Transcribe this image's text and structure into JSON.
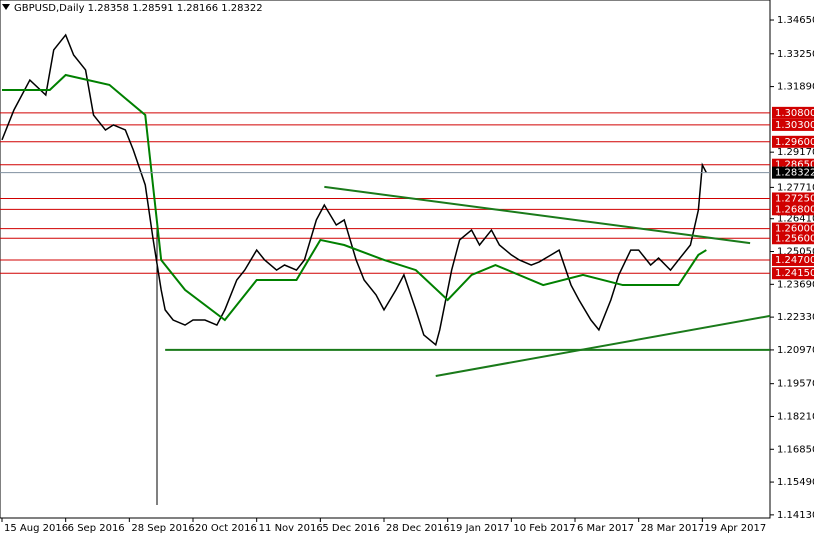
{
  "chart_data": {
    "type": "line",
    "title": "GBPUSD,Daily  1.28358 1.28591 1.28166 1.28322",
    "ylim": [
      1.14,
      1.3548
    ],
    "xlim": [
      0,
      193
    ],
    "yticks": [
      {
        "value": 1.3465,
        "label": "1.34650"
      },
      {
        "value": 1.3325,
        "label": "1.33250"
      },
      {
        "value": 1.3189,
        "label": "1.31890"
      },
      {
        "value": 1.2917,
        "label": "1.29170"
      },
      {
        "value": 1.2771,
        "label": "1.27710"
      },
      {
        "value": 1.2641,
        "label": "1.26410"
      },
      {
        "value": 1.2505,
        "label": "1.25050"
      },
      {
        "value": 1.2369,
        "label": "1.23690"
      },
      {
        "value": 1.2233,
        "label": "1.22330"
      },
      {
        "value": 1.2097,
        "label": "1.20970"
      },
      {
        "value": 1.1957,
        "label": "1.19570"
      },
      {
        "value": 1.1821,
        "label": "1.18210"
      },
      {
        "value": 1.1685,
        "label": "1.16850"
      },
      {
        "value": 1.1549,
        "label": "1.15490"
      },
      {
        "value": 1.1413,
        "label": "1.14130"
      }
    ],
    "xticks": [
      {
        "value": 0,
        "label": "15 Aug 2016"
      },
      {
        "value": 16,
        "label": "6 Sep 2016"
      },
      {
        "value": 32,
        "label": "28 Sep 2016"
      },
      {
        "value": 48,
        "label": "20 Oct 2016"
      },
      {
        "value": 64,
        "label": "11 Nov 2016"
      },
      {
        "value": 80,
        "label": "5 Dec 2016"
      },
      {
        "value": 96,
        "label": "28 Dec 2016"
      },
      {
        "value": 112,
        "label": "19 Jan 2017"
      },
      {
        "value": 128,
        "label": "10 Feb 2017"
      },
      {
        "value": 144,
        "label": "6 Mar 2017"
      },
      {
        "value": 160,
        "label": "28 Mar 2017"
      },
      {
        "value": 176,
        "label": "19 Apr 2017"
      }
    ],
    "levels": [
      {
        "value": 1.308,
        "label": "1.30800"
      },
      {
        "value": 1.303,
        "label": "1.30300"
      },
      {
        "value": 1.296,
        "label": "1.29600"
      },
      {
        "value": 1.2865,
        "label": "1.28650"
      },
      {
        "value": 1.2725,
        "label": "1.27250"
      },
      {
        "value": 1.268,
        "label": "1.26800"
      },
      {
        "value": 1.26,
        "label": "1.26000"
      },
      {
        "value": 1.256,
        "label": "1.25600"
      },
      {
        "value": 1.247,
        "label": "1.24700"
      },
      {
        "value": 1.2415,
        "label": "1.24150"
      }
    ],
    "level_color": "#d00000",
    "last": {
      "value": 1.28322,
      "label": "1.28322"
    },
    "series": [
      {
        "color": "#000000",
        "width": 1.5,
        "x": [
          0,
          3,
          7,
          11,
          13,
          16,
          18,
          21,
          23,
          26,
          28,
          31,
          33,
          36,
          38,
          40,
          41,
          43,
          46,
          48,
          51,
          54,
          56,
          59,
          61,
          64,
          66,
          69,
          71,
          74,
          76,
          79,
          81,
          84,
          86,
          89,
          91,
          94,
          96,
          99,
          101,
          104,
          106,
          109,
          110,
          113,
          115,
          118,
          120,
          123,
          125,
          128,
          130,
          133,
          135,
          138,
          140,
          143,
          145,
          148,
          150,
          153,
          155,
          158,
          160,
          163,
          165,
          168,
          170,
          173,
          175,
          176,
          177
        ],
        "values": [
          1.2968,
          1.3092,
          1.3216,
          1.3154,
          1.3341,
          1.3403,
          1.332,
          1.3258,
          1.3071,
          1.3009,
          1.303,
          1.3009,
          1.2926,
          1.2781,
          1.2553,
          1.2346,
          1.2263,
          1.2221,
          1.22,
          1.2221,
          1.2221,
          1.22,
          1.2263,
          1.2387,
          1.2428,
          1.2511,
          1.247,
          1.2428,
          1.2449,
          1.2428,
          1.247,
          1.2636,
          1.2698,
          1.2615,
          1.2636,
          1.247,
          1.2387,
          1.2325,
          1.2263,
          1.2346,
          1.2408,
          1.2263,
          1.2159,
          1.2118,
          1.218,
          1.2428,
          1.2553,
          1.2594,
          1.2532,
          1.2594,
          1.2532,
          1.2491,
          1.247,
          1.2449,
          1.2462,
          1.2491,
          1.2511,
          1.2366,
          1.2304,
          1.2221,
          1.218,
          1.2304,
          1.2408,
          1.2511,
          1.2511,
          1.2449,
          1.2478,
          1.2428,
          1.247,
          1.2532,
          1.2677,
          1.2864,
          1.28322
        ]
      },
      {
        "color": "#008000",
        "width": 2,
        "x": [
          0,
          12,
          16,
          27,
          36,
          40,
          46,
          56,
          64,
          74,
          80,
          86,
          96,
          104,
          112,
          118,
          124,
          136,
          146,
          156,
          170,
          175,
          177
        ],
        "values": [
          1.3175,
          1.3175,
          1.3237,
          1.3196,
          1.3071,
          1.247,
          1.2346,
          1.2221,
          1.2387,
          1.2387,
          1.2553,
          1.2532,
          1.247,
          1.2428,
          1.2304,
          1.2408,
          1.2449,
          1.2366,
          1.2408,
          1.2366,
          1.2366,
          1.2491,
          1.2511
        ]
      },
      {
        "color": "#1a7a1a",
        "width": 2,
        "x": [
          81,
          188
        ],
        "values": [
          1.2773,
          1.254
        ]
      },
      {
        "color": "#1a7a1a",
        "width": 2,
        "x": [
          109,
          193
        ],
        "values": [
          1.1989,
          1.2238
        ]
      },
      {
        "color": "#1a7a1a",
        "width": 2,
        "x": [
          41,
          193
        ],
        "values": [
          1.2097,
          1.2097
        ]
      }
    ]
  }
}
